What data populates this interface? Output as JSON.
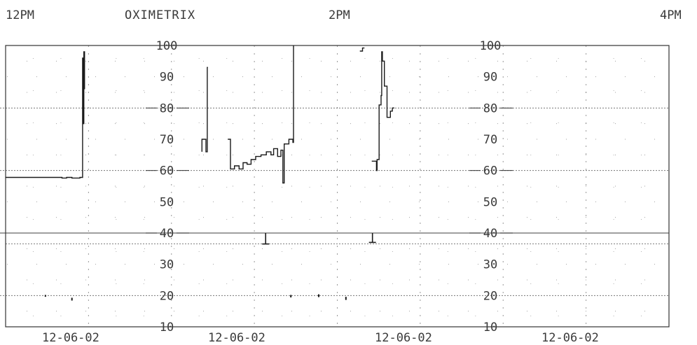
{
  "header": {
    "time_left": "12PM",
    "brand": "OXIMETRIX",
    "time_mid": "2PM",
    "time_right": "4PM"
  },
  "footer": {
    "dates": [
      "12-06-02",
      "12-06-02",
      "12-06-02",
      "12-06-02"
    ]
  },
  "chart_data": {
    "type": "line",
    "title": "OXIMETRIX",
    "x_tick_labels": [
      "12PM",
      "2PM",
      "4PM"
    ],
    "x_date_labels": [
      "12-06-02",
      "12-06-02",
      "12-06-02",
      "12-06-02"
    ],
    "y_ticks": [
      10,
      20,
      30,
      40,
      50,
      60,
      70,
      80,
      90,
      100
    ],
    "y_tick_labels": [
      "10",
      "20",
      "30",
      "40",
      "50",
      "60",
      "70",
      "80",
      "90",
      "100"
    ],
    "ylim": [
      10,
      100
    ],
    "grid": true,
    "line_color": "#1a1a1a",
    "grid_color": "#555555",
    "series": [
      {
        "points": [
          [
            0.0,
            57.8
          ],
          [
            0.085,
            57.8
          ],
          [
            0.085,
            57.6
          ],
          [
            0.092,
            57.6
          ],
          [
            0.092,
            57.8
          ],
          [
            0.1,
            57.8
          ],
          [
            0.1,
            57.6
          ],
          [
            0.112,
            57.6
          ],
          [
            0.112,
            57.8
          ],
          [
            0.116,
            57.8
          ],
          [
            0.116,
            96
          ],
          [
            0.117,
            96
          ],
          [
            0.117,
            75
          ],
          [
            0.118,
            75
          ],
          [
            0.118,
            98
          ],
          [
            0.119,
            98
          ],
          [
            0.119,
            86
          ]
        ]
      },
      {
        "points": [
          [
            0.296,
            66
          ],
          [
            0.296,
            70
          ],
          [
            0.302,
            70
          ],
          [
            0.302,
            66
          ],
          [
            0.304,
            66
          ],
          [
            0.304,
            93
          ],
          [
            0.305,
            93
          ]
        ]
      },
      {
        "points": [
          [
            0.335,
            70
          ],
          [
            0.339,
            70
          ],
          [
            0.339,
            60.5
          ],
          [
            0.345,
            60.5
          ],
          [
            0.345,
            61.5
          ],
          [
            0.352,
            61.5
          ],
          [
            0.352,
            60.5
          ],
          [
            0.358,
            60.5
          ],
          [
            0.358,
            62.5
          ],
          [
            0.364,
            62.5
          ],
          [
            0.364,
            62
          ],
          [
            0.37,
            62
          ],
          [
            0.37,
            63.5
          ],
          [
            0.377,
            63.5
          ],
          [
            0.377,
            64.5
          ],
          [
            0.385,
            64.5
          ],
          [
            0.385,
            65
          ],
          [
            0.393,
            65
          ],
          [
            0.393,
            66
          ],
          [
            0.4,
            66
          ],
          [
            0.4,
            65
          ],
          [
            0.404,
            65
          ],
          [
            0.404,
            67
          ],
          [
            0.41,
            67
          ],
          [
            0.41,
            64.5
          ],
          [
            0.415,
            64.5
          ],
          [
            0.415,
            66.5
          ],
          [
            0.418,
            66.5
          ],
          [
            0.418,
            56
          ],
          [
            0.42,
            56
          ],
          [
            0.42,
            68.5
          ],
          [
            0.427,
            68.5
          ],
          [
            0.427,
            70
          ],
          [
            0.433,
            70
          ],
          [
            0.433,
            69
          ],
          [
            0.434,
            69
          ],
          [
            0.434,
            100
          ]
        ]
      },
      {
        "points": [
          [
            0.534,
            98.2
          ],
          [
            0.538,
            98.2
          ],
          [
            0.538,
            99.2
          ],
          [
            0.541,
            99.2
          ]
        ]
      },
      {
        "points": [
          [
            0.552,
            63
          ],
          [
            0.559,
            63
          ],
          [
            0.559,
            60
          ],
          [
            0.56,
            60
          ],
          [
            0.56,
            63.5
          ],
          [
            0.563,
            63.5
          ],
          [
            0.563,
            81
          ],
          [
            0.566,
            81
          ],
          [
            0.566,
            84
          ],
          [
            0.567,
            84
          ],
          [
            0.567,
            98
          ],
          [
            0.568,
            98
          ],
          [
            0.568,
            95
          ],
          [
            0.571,
            95
          ],
          [
            0.571,
            87
          ],
          [
            0.575,
            87
          ],
          [
            0.575,
            77
          ],
          [
            0.58,
            77
          ],
          [
            0.58,
            79
          ],
          [
            0.583,
            79
          ],
          [
            0.583,
            80
          ],
          [
            0.586,
            80
          ]
        ]
      }
    ],
    "event_marks": [
      {
        "x": 0.06,
        "y_top": 20.2,
        "y_bottom": 19.6
      },
      {
        "x": 0.1,
        "y_top": 19.3,
        "y_bottom": 18.4
      },
      {
        "x": 0.43,
        "y_top": 20.2,
        "y_bottom": 19.4
      },
      {
        "x": 0.472,
        "y_top": 20.4,
        "y_bottom": 19.5
      },
      {
        "x": 0.513,
        "y_top": 19.6,
        "y_bottom": 18.6
      }
    ],
    "drop_markers": [
      {
        "x": 0.392,
        "y": 36.5
      },
      {
        "x": 0.553,
        "y": 37.0
      }
    ]
  }
}
